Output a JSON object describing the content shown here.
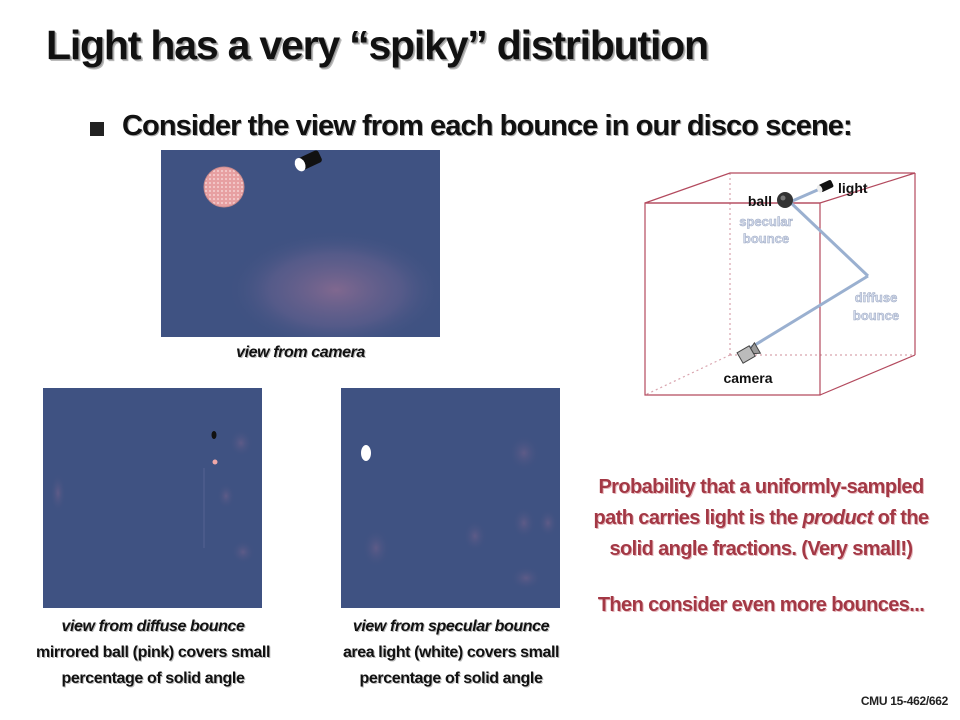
{
  "title": "Light has a very “spiky” distribution",
  "bullet": "Consider the view from each bounce in our disco scene:",
  "captions": {
    "camera": "view from camera",
    "diffuse_title": "view from diffuse bounce",
    "diffuse_line1": "mirrored ball (pink) covers small",
    "diffuse_line2": "percentage of solid angle",
    "specular_title": "view from specular bounce",
    "specular_line1": "area light (white) covers small",
    "specular_line2": "percentage of solid angle"
  },
  "diagram_labels": {
    "ball": "ball",
    "light": "light",
    "specular": "specular",
    "specular_bounce": "bounce",
    "diffuse": "diffuse",
    "diffuse_bounce": "bounce",
    "camera": "camera"
  },
  "probability": {
    "line1": "Probability that a uniformly-sampled",
    "line2_pre": "path carries light is the ",
    "line2_em": "product",
    "line2_post": " of the",
    "line3": "solid angle fractions. (Very small!)"
  },
  "more_bounces": "Then consider even more bounces...",
  "footer": "CMU 15-462/662",
  "colors": {
    "render_bg": "#3f5282",
    "accent_red": "#a33845",
    "pink_ball": "#e59a9a",
    "box_lines": "#b34a5e",
    "path_lines": "#9ab0d0"
  }
}
